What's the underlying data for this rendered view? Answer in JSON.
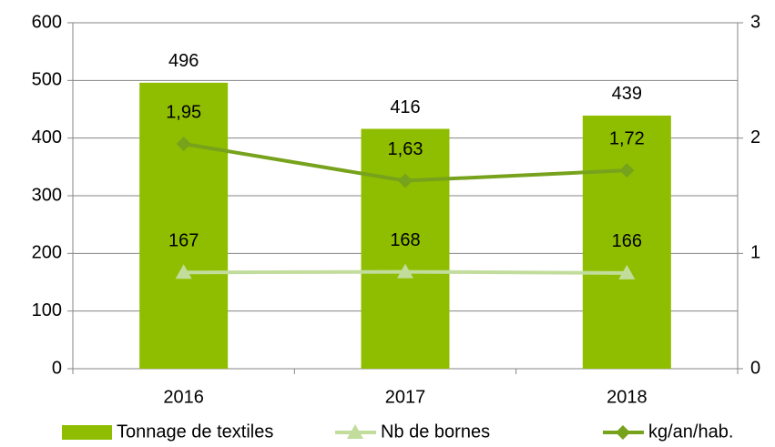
{
  "chart_data": {
    "type": "bar",
    "categories": [
      "2016",
      "2017",
      "2018"
    ],
    "series": [
      {
        "name": "Tonnage de textiles",
        "type": "bar",
        "color": "#8fbe00",
        "values": [
          496,
          416,
          439
        ]
      },
      {
        "name": "Nb de bornes",
        "type": "line",
        "marker": "triangle",
        "color": "#c2dc9c",
        "values": [
          167,
          168,
          166
        ]
      },
      {
        "name": "kg/an/hab.",
        "type": "line",
        "marker": "diamond",
        "axis": "y2",
        "color": "#77a21b",
        "values": [
          1.95,
          1.63,
          1.72
        ],
        "value_labels": [
          "1,95",
          "1,63",
          "1,72"
        ]
      }
    ],
    "ylim": [
      0,
      600
    ],
    "yticks": [
      0,
      100,
      200,
      300,
      400,
      500,
      600
    ],
    "y2lim": [
      0,
      3
    ],
    "y2ticks": [
      0,
      1,
      2,
      3
    ],
    "grid": true,
    "legend": "bottom"
  }
}
